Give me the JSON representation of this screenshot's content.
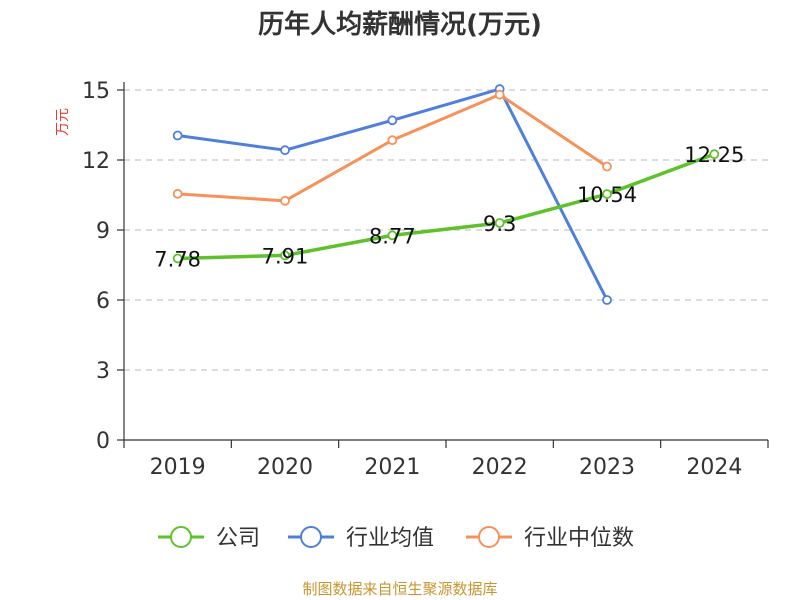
{
  "chart_data": {
    "type": "line",
    "title": "历年人均薪酬情况(万元)",
    "ylabel": "万元",
    "xlabel": "",
    "categories": [
      "2019",
      "2020",
      "2021",
      "2022",
      "2023",
      "2024"
    ],
    "ylim": [
      0,
      15
    ],
    "yticks": [
      "0",
      "3",
      "6",
      "9",
      "12",
      "15"
    ],
    "grid": true,
    "legend_position": "bottom",
    "series": [
      {
        "name": "公司",
        "color": "#5ec22a",
        "values": [
          7.78,
          7.91,
          8.77,
          9.3,
          10.54,
          12.25
        ],
        "labels": [
          "7.78",
          "7.91",
          "8.77",
          "9.3",
          "10.54",
          "12.25"
        ]
      },
      {
        "name": "行业均值",
        "color": "#4e7fdc",
        "values": [
          13.05,
          12.42,
          13.7,
          15.04,
          6.0,
          null
        ]
      },
      {
        "name": "行业中位数",
        "color": "#f7915a",
        "values": [
          10.55,
          10.25,
          12.85,
          14.8,
          11.72,
          null
        ]
      }
    ]
  },
  "source_text": "制图数据来自恒生聚源数据库",
  "colors": {
    "ylabel": "#e03c3c",
    "source": "#c8962d",
    "axis": "#333333",
    "grid": "#c8c8c8"
  }
}
